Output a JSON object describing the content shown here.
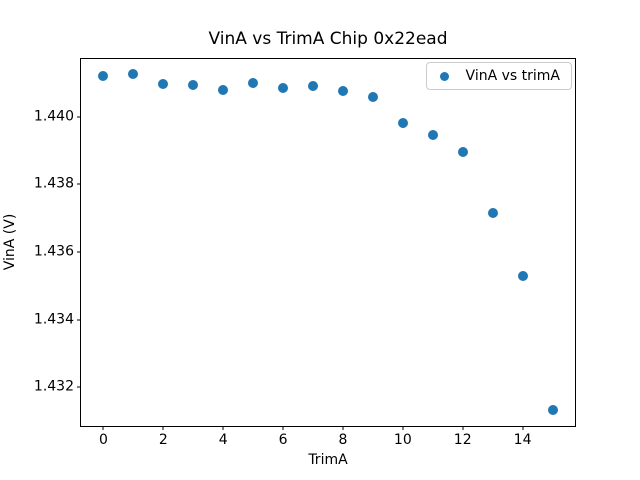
{
  "figure": {
    "title": "VinA vs TrimA Chip 0x22ead",
    "xlabel": "TrimA",
    "ylabel": "VinA (V)",
    "legend_label": "VinA vs trimA",
    "background_color": "#ffffff",
    "marker_color": "#1f77b4"
  },
  "chart_data": {
    "type": "scatter",
    "title": "VinA vs TrimA Chip 0x22ead",
    "xlabel": "TrimA",
    "ylabel": "VinA (V)",
    "legend": [
      "VinA vs trimA"
    ],
    "legend_position": "upper right",
    "marker_color": "#1f77b4",
    "grid": false,
    "x": [
      0,
      1,
      2,
      3,
      4,
      5,
      6,
      7,
      8,
      9,
      10,
      11,
      12,
      13,
      14,
      15
    ],
    "y": [
      1.4412,
      1.44126,
      1.44097,
      1.44095,
      1.44078,
      1.441,
      1.44085,
      1.44091,
      1.44076,
      1.44058,
      1.43981,
      1.43946,
      1.43897,
      1.43715,
      1.4353,
      1.43133
    ],
    "xlim": [
      -0.75,
      15.75
    ],
    "ylim": [
      1.43085,
      1.44171
    ],
    "xticks": [
      0,
      2,
      4,
      6,
      8,
      10,
      12,
      14
    ],
    "yticks": [
      1.432,
      1.434,
      1.436,
      1.438,
      1.44
    ],
    "ytick_decimals": 3
  }
}
